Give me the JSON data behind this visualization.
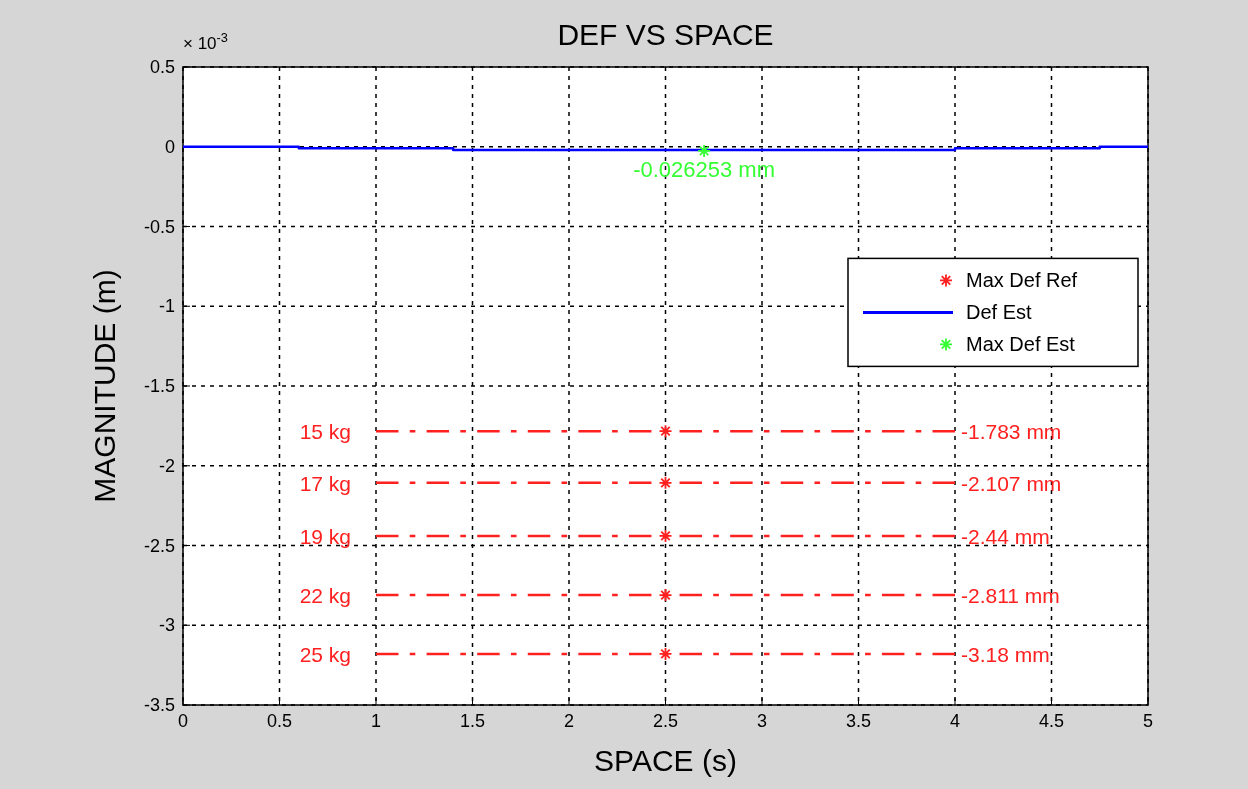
{
  "chart_data": {
    "type": "line",
    "title": "DEF VS SPACE",
    "xlabel": "SPACE (s)",
    "ylabel": "MAGNITUDE (m)",
    "xlim": [
      0,
      5
    ],
    "xticks": [
      0,
      0.5,
      1,
      1.5,
      2,
      2.5,
      3,
      3.5,
      4,
      4.5,
      5
    ],
    "ylim": [
      -3.5,
      0.5
    ],
    "yticks": [
      -3.5,
      -3,
      -2.5,
      -2,
      -1.5,
      -1,
      -0.5,
      0,
      0.5
    ],
    "grid": true,
    "legend": "right",
    "line_style": "solid",
    "series": [
      {
        "name": "Max Def Ref",
        "type": "scatter",
        "marker": "cross",
        "color": "#ff2020",
        "x": [
          2.5,
          2.5,
          2.5,
          2.5,
          2.5
        ],
        "values": [
          -1.783,
          -2.107,
          -2.44,
          -2.811,
          -3.18
        ]
      },
      {
        "name": "Def Est",
        "type": "line",
        "color": "#0000ff",
        "x": [
          0,
          0.6,
          0.6,
          1.4,
          1.4,
          4,
          4,
          4.75,
          4.75,
          5
        ],
        "values": [
          0,
          0,
          -0.01,
          -0.01,
          -0.02,
          -0.02,
          -0.01,
          -0.01,
          0,
          0
        ]
      },
      {
        "name": "Max Def Est",
        "type": "scatter",
        "marker": "cross",
        "color": "#33ff33",
        "x": [
          2.7
        ],
        "values": [
          -0.026253
        ]
      },
      {
        "line_style": "dashed",
        "color": "#ff2020",
        "x": [
          1,
          4
        ],
        "values": [
          -1.783,
          -1.783
        ]
      },
      {
        "line_style": "dashed",
        "color": "#ff2020",
        "x": [
          1,
          4
        ],
        "values": [
          -2.107,
          -2.107
        ]
      },
      {
        "line_style": "dashed",
        "color": "#ff2020",
        "x": [
          1,
          4
        ],
        "values": [
          -2.44,
          -2.44
        ]
      },
      {
        "line_style": "dashed",
        "color": "#ff2020",
        "x": [
          1,
          4
        ],
        "values": [
          -2.811,
          -2.811
        ]
      },
      {
        "line_style": "dashed",
        "color": "#ff2020",
        "x": [
          1,
          4
        ],
        "values": [
          -3.18,
          -3.18
        ]
      }
    ],
    "annotations": [
      "× 10$^{-3}$",
      {
        "text": "-0.026253 mm",
        "x": 2.7,
        "y": -0.026253
      },
      {
        "text": "15 kg",
        "x": 1,
        "y": -1.783
      },
      {
        "text": "17 kg",
        "x": 1,
        "y": -2.107
      },
      {
        "text": "19 kg",
        "x": 1,
        "y": -2.44
      },
      {
        "text": "22 kg",
        "x": 1,
        "y": -2.811
      },
      {
        "text": "25 kg",
        "x": 1,
        "y": -3.18
      },
      {
        "text": "-1.783 mm",
        "x": 4,
        "y": -1.783
      },
      {
        "text": "-2.107 mm",
        "x": 4,
        "y": -2.107
      },
      {
        "text": "-2.44 mm",
        "x": 4,
        "y": -2.44
      },
      {
        "text": "-2.811 mm",
        "x": 4,
        "y": -2.811
      },
      {
        "text": "-3.18 mm",
        "x": 4,
        "y": -3.18
      }
    ]
  }
}
